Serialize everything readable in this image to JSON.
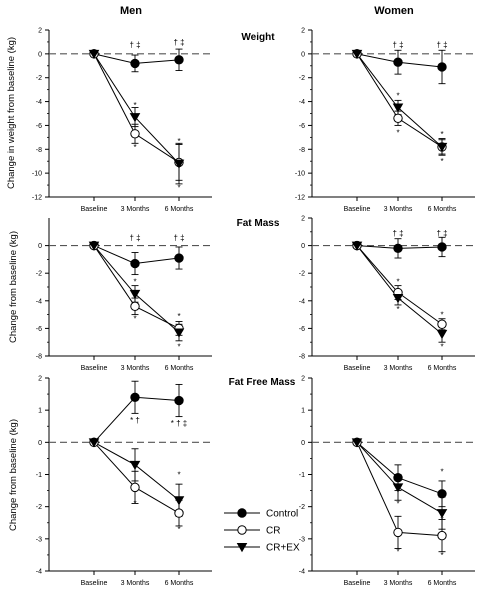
{
  "column_titles": [
    "Men",
    "Women"
  ],
  "legend": {
    "items": [
      {
        "label": "Control",
        "marker": "circle-filled"
      },
      {
        "label": "CR",
        "marker": "circle-open"
      },
      {
        "label": "CR+EX",
        "marker": "triangle-down-filled"
      }
    ]
  },
  "chart_data": [
    {
      "type": "line",
      "sex": "Men",
      "title": "",
      "row_title": "Weight",
      "ylabel": "Change in weight from baseline (kg)",
      "categories": [
        "Baseline",
        "3 Months",
        "6 Months"
      ],
      "ylim": [
        -12,
        2
      ],
      "yticks": [
        -12,
        -10,
        -8,
        -6,
        -4,
        -2,
        0,
        2
      ],
      "series": [
        {
          "name": "Control",
          "values": [
            0,
            -0.8,
            -0.5
          ],
          "err": [
            0,
            0.7,
            0.9
          ]
        },
        {
          "name": "CR",
          "values": [
            0,
            -6.7,
            -9.1
          ],
          "err": [
            0,
            0.8,
            1.5
          ]
        },
        {
          "name": "CR+EX",
          "values": [
            0,
            -5.3,
            -9.2
          ],
          "err": [
            0,
            0.8,
            1.7
          ]
        }
      ],
      "annotations": [
        {
          "text": "† ‡",
          "x": 1,
          "y": 0.8
        },
        {
          "text": "† ‡",
          "x": 2,
          "y": 1.0
        },
        {
          "text": "*",
          "x": 1,
          "y": -4.3
        },
        {
          "text": "*",
          "x": 1,
          "y": -7.8
        },
        {
          "text": "*",
          "x": 2,
          "y": -7.3
        },
        {
          "text": "*",
          "x": 2,
          "y": -11.2
        }
      ]
    },
    {
      "type": "line",
      "sex": "Women",
      "title": "",
      "row_title": "Weight",
      "ylabel": "",
      "categories": [
        "Baseline",
        "3 Months",
        "6 Months"
      ],
      "ylim": [
        -12,
        2
      ],
      "yticks": [
        -12,
        -10,
        -8,
        -6,
        -4,
        -2,
        0,
        2
      ],
      "series": [
        {
          "name": "Control",
          "values": [
            0,
            -0.7,
            -1.1
          ],
          "err": [
            0,
            1.0,
            1.4
          ]
        },
        {
          "name": "CR",
          "values": [
            0,
            -5.4,
            -7.8
          ],
          "err": [
            0,
            0.6,
            0.7
          ]
        },
        {
          "name": "CR+EX",
          "values": [
            0,
            -4.5,
            -7.8
          ],
          "err": [
            0,
            0.6,
            0.6
          ]
        }
      ],
      "annotations": [
        {
          "text": "† ‡",
          "x": 1,
          "y": 0.8
        },
        {
          "text": "† ‡",
          "x": 2,
          "y": 0.8
        },
        {
          "text": "*",
          "x": 1,
          "y": -3.5
        },
        {
          "text": "*",
          "x": 1,
          "y": -6.6
        },
        {
          "text": "*",
          "x": 2,
          "y": -6.7
        },
        {
          "text": "*",
          "x": 2,
          "y": -9.0
        }
      ]
    },
    {
      "type": "line",
      "sex": "Men",
      "title": "",
      "row_title": "Fat Mass",
      "ylabel": "Change from baseline (kg)",
      "categories": [
        "Baseline",
        "3 Months",
        "6 Months"
      ],
      "ylim": [
        -8,
        2
      ],
      "yticks": [
        -8,
        -6,
        -4,
        -2,
        0
      ],
      "series": [
        {
          "name": "Control",
          "values": [
            0,
            -1.3,
            -0.9
          ],
          "err": [
            0,
            0.8,
            0.8
          ]
        },
        {
          "name": "CR",
          "values": [
            0,
            -4.4,
            -6.0
          ],
          "err": [
            0,
            0.6,
            0.5
          ]
        },
        {
          "name": "CR+EX",
          "values": [
            0,
            -3.5,
            -6.3
          ],
          "err": [
            0,
            0.6,
            0.6
          ]
        }
      ],
      "annotations": [
        {
          "text": "† ‡",
          "x": 1,
          "y": 0.6
        },
        {
          "text": "† ‡",
          "x": 2,
          "y": 0.6
        },
        {
          "text": "*",
          "x": 1,
          "y": -2.6
        },
        {
          "text": "*",
          "x": 1,
          "y": -5.3
        },
        {
          "text": "*",
          "x": 2,
          "y": -5.1
        },
        {
          "text": "*",
          "x": 2,
          "y": -7.3
        }
      ]
    },
    {
      "type": "line",
      "sex": "Women",
      "title": "",
      "row_title": "",
      "ylabel": "",
      "categories": [
        "Baseline",
        "3 Months",
        "6 Months"
      ],
      "ylim": [
        -8,
        2
      ],
      "yticks": [
        -8,
        -6,
        -4,
        -2,
        0,
        2
      ],
      "series": [
        {
          "name": "Control",
          "values": [
            0,
            -0.2,
            -0.1
          ],
          "err": [
            0,
            0.7,
            0.7
          ]
        },
        {
          "name": "CR",
          "values": [
            0,
            -3.4,
            -5.7
          ],
          "err": [
            0,
            0.5,
            0.4
          ]
        },
        {
          "name": "CR+EX",
          "values": [
            0,
            -3.8,
            -6.4
          ],
          "err": [
            0,
            0.5,
            0.6
          ]
        }
      ],
      "annotations": [
        {
          "text": "† ‡",
          "x": 1,
          "y": 0.9
        },
        {
          "text": "† ‡",
          "x": 2,
          "y": 0.9
        },
        {
          "text": "*",
          "x": 1,
          "y": -2.6
        },
        {
          "text": "*",
          "x": 1,
          "y": -4.6
        },
        {
          "text": "*",
          "x": 2,
          "y": -5.0
        },
        {
          "text": "*",
          "x": 2,
          "y": -7.3
        }
      ]
    },
    {
      "type": "line",
      "sex": "Men",
      "title": "",
      "row_title": "Fat Free Mass",
      "ylabel": "Change from baseline (kg)",
      "categories": [
        "Baseline",
        "3 Months",
        "6 Months"
      ],
      "ylim": [
        -4,
        2
      ],
      "yticks": [
        -4,
        -3,
        -2,
        -1,
        0,
        1,
        2
      ],
      "series": [
        {
          "name": "Control",
          "values": [
            0,
            1.4,
            1.3
          ],
          "err": [
            0,
            0.5,
            0.5
          ]
        },
        {
          "name": "CR",
          "values": [
            0,
            -1.4,
            -2.2
          ],
          "err": [
            0,
            0.5,
            0.4
          ]
        },
        {
          "name": "CR+EX",
          "values": [
            0,
            -0.7,
            -1.8
          ],
          "err": [
            0,
            0.5,
            0.5
          ]
        }
      ],
      "annotations": [
        {
          "text": "* †",
          "x": 1,
          "y": 0.7
        },
        {
          "text": "* † ‡",
          "x": 2,
          "y": 0.6
        },
        {
          "text": "*",
          "x": 1,
          "y": -1.9
        },
        {
          "text": "*",
          "x": 2,
          "y": -1.0
        },
        {
          "text": "*",
          "x": 2,
          "y": -2.7
        }
      ]
    },
    {
      "type": "line",
      "sex": "Women",
      "title": "",
      "row_title": "",
      "ylabel": "",
      "categories": [
        "Baseline",
        "3 Months",
        "6 Months"
      ],
      "ylim": [
        -4,
        2
      ],
      "yticks": [
        -4,
        -3,
        -2,
        -1,
        0,
        1,
        2
      ],
      "series": [
        {
          "name": "Control",
          "values": [
            0,
            -1.1,
            -1.6
          ],
          "err": [
            0,
            0.4,
            0.4
          ]
        },
        {
          "name": "CR",
          "values": [
            0,
            -2.8,
            -2.9
          ],
          "err": [
            0,
            0.5,
            0.5
          ]
        },
        {
          "name": "CR+EX",
          "values": [
            0,
            -1.4,
            -2.2
          ],
          "err": [
            0,
            0.4,
            0.5
          ]
        }
      ],
      "annotations": [
        {
          "text": "*",
          "x": 1,
          "y": -1.9
        },
        {
          "text": "*",
          "x": 1,
          "y": -3.4
        },
        {
          "text": "*",
          "x": 2,
          "y": -0.9
        },
        {
          "text": "*",
          "x": 2,
          "y": -2.4
        },
        {
          "text": "*",
          "x": 2,
          "y": -3.5
        }
      ]
    }
  ]
}
